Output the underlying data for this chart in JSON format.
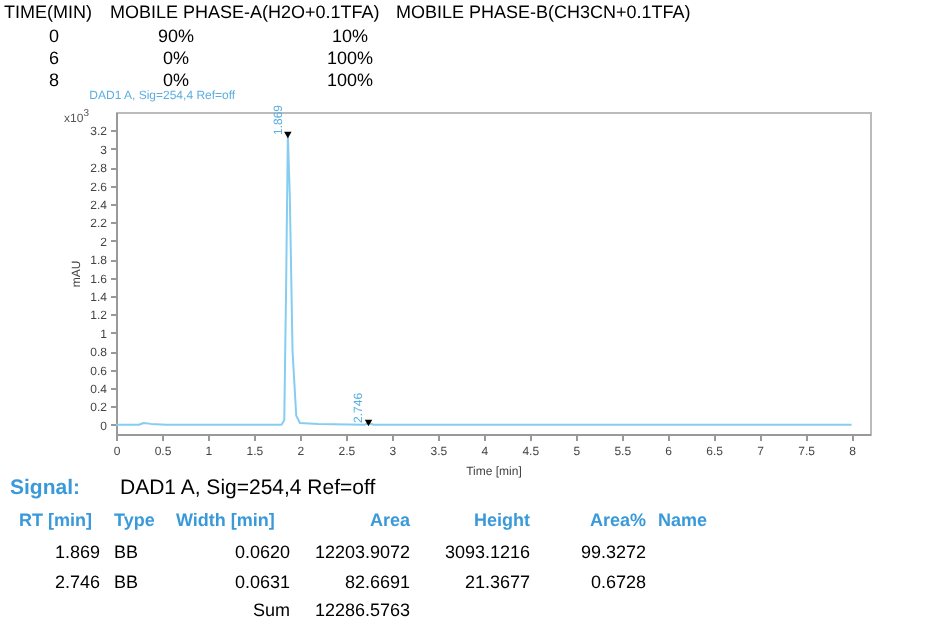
{
  "chart_data": {
    "type": "line",
    "title": "DAD1 A, Sig=254,4 Ref=off",
    "xlabel": "Time [min]",
    "ylabel": "mAU",
    "x": [
      0,
      0.25,
      0.3,
      0.38,
      0.55,
      1.8,
      1.83,
      1.85,
      1.869,
      1.89,
      1.92,
      1.96,
      2.0,
      2.2,
      2.7,
      2.746,
      2.8,
      8
    ],
    "series": [
      {
        "color": "#87cdf0",
        "values": [
          0,
          0,
          0.02,
          0.01,
          0,
          0,
          0.05,
          1.5,
          3.15,
          2.5,
          0.8,
          0.1,
          0.02,
          0.01,
          0,
          0.02,
          0,
          0
        ]
      }
    ],
    "xlim": [
      0,
      8.2
    ],
    "xticks": [
      0,
      0.5,
      1,
      1.5,
      2,
      2.5,
      3,
      3.5,
      4,
      4.5,
      5,
      5.5,
      6,
      6.5,
      7,
      7.5,
      8
    ],
    "ylim": [
      -0.1,
      3.4
    ],
    "yticks": [
      0,
      0.2,
      0.4,
      0.6,
      0.8,
      1,
      1.2,
      1.4,
      1.6,
      1.8,
      2,
      2.2,
      2.4,
      2.6,
      2.8,
      3,
      3.2
    ],
    "grid": false,
    "annotations": [
      {
        "text": "1.869",
        "x": 1.869,
        "y": 3.15
      },
      {
        "text": "2.746",
        "x": 2.746,
        "y": 0.02
      },
      "x10$^{3}$",
      "TIME(MIN)",
      "MOBILE PHASE-A(H2O+0.1TFA)",
      "MOBILE PHASE-B(CH3CN+0.1TFA)",
      "0",
      "90%",
      "10%",
      "6",
      "0%",
      "100%",
      "8",
      "0%",
      "100%",
      "Signal:",
      "DAD1 A, Sig=254,4 Ref=off",
      "RT [min]",
      "Type",
      "Width [min]",
      "Area",
      "Height",
      "Area%",
      "Name",
      "1.869",
      "BB",
      "0.0620",
      "12203.9072",
      "3093.1216",
      "99.3272",
      "2.746",
      "BB",
      "0.0631",
      "82.6691",
      "21.3677",
      "0.6728",
      "Sum",
      "12286.5763"
    ]
  }
}
